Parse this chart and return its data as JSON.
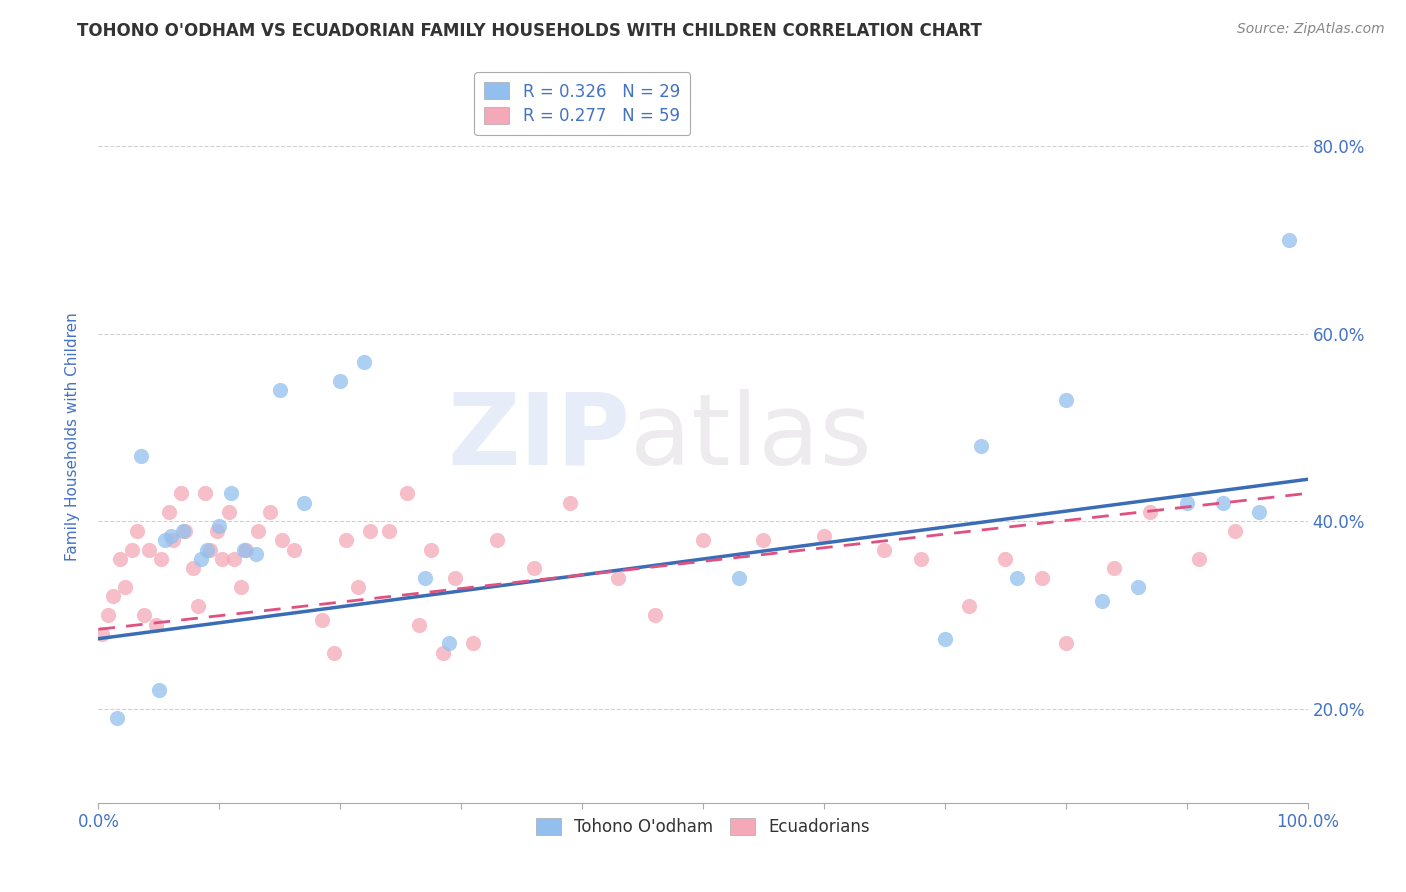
{
  "title": "TOHONO O'ODHAM VS ECUADORIAN FAMILY HOUSEHOLDS WITH CHILDREN CORRELATION CHART",
  "source": "Source: ZipAtlas.com",
  "ylabel": "Family Households with Children",
  "watermark_top": "ZIP",
  "watermark_bot": "atlas",
  "xlim": [
    0,
    100
  ],
  "ylim": [
    10,
    88
  ],
  "yticks": [
    20.0,
    40.0,
    60.0,
    80.0
  ],
  "xticks": [
    0,
    10,
    20,
    30,
    40,
    50,
    60,
    70,
    80,
    90,
    100
  ],
  "legend_r1": "R = 0.326",
  "legend_n1": "N = 29",
  "legend_r2": "R = 0.277",
  "legend_n2": "N = 59",
  "blue_color": "#92BFED",
  "pink_color": "#F4A8B8",
  "blue_line_color": "#3A6DB5",
  "pink_line_color": "#E05080",
  "text_color": "#4472C4",
  "tohono_x": [
    1.5,
    3.5,
    5.0,
    5.5,
    6.0,
    7.0,
    8.5,
    9.0,
    10.0,
    11.0,
    12.0,
    13.0,
    15.0,
    17.0,
    20.0,
    22.0,
    27.0,
    29.0,
    53.0,
    70.0,
    73.0,
    76.0,
    80.0,
    83.0,
    86.0,
    90.0,
    93.0,
    96.0,
    98.5
  ],
  "tohono_y": [
    19.0,
    47.0,
    22.0,
    38.0,
    38.5,
    39.0,
    36.0,
    37.0,
    39.5,
    43.0,
    37.0,
    36.5,
    54.0,
    42.0,
    55.0,
    57.0,
    34.0,
    27.0,
    34.0,
    27.5,
    48.0,
    34.0,
    53.0,
    31.5,
    33.0,
    42.0,
    42.0,
    41.0,
    70.0
  ],
  "ecuador_x": [
    0.3,
    0.8,
    1.2,
    1.8,
    2.2,
    2.8,
    3.2,
    3.8,
    4.2,
    4.8,
    5.2,
    5.8,
    6.2,
    6.8,
    7.2,
    7.8,
    8.2,
    8.8,
    9.2,
    9.8,
    10.2,
    10.8,
    11.2,
    11.8,
    12.2,
    13.2,
    14.2,
    15.2,
    16.2,
    18.5,
    19.5,
    20.5,
    21.5,
    22.5,
    24.0,
    25.5,
    26.5,
    27.5,
    28.5,
    29.5,
    31.0,
    33.0,
    36.0,
    39.0,
    43.0,
    46.0,
    50.0,
    55.0,
    60.0,
    65.0,
    68.0,
    72.0,
    75.0,
    78.0,
    80.0,
    84.0,
    87.0,
    91.0,
    94.0
  ],
  "ecuador_y": [
    28.0,
    30.0,
    32.0,
    36.0,
    33.0,
    37.0,
    39.0,
    30.0,
    37.0,
    29.0,
    36.0,
    41.0,
    38.0,
    43.0,
    39.0,
    35.0,
    31.0,
    43.0,
    37.0,
    39.0,
    36.0,
    41.0,
    36.0,
    33.0,
    37.0,
    39.0,
    41.0,
    38.0,
    37.0,
    29.5,
    26.0,
    38.0,
    33.0,
    39.0,
    39.0,
    43.0,
    29.0,
    37.0,
    26.0,
    34.0,
    27.0,
    38.0,
    35.0,
    42.0,
    34.0,
    30.0,
    38.0,
    38.0,
    38.5,
    37.0,
    36.0,
    31.0,
    36.0,
    34.0,
    27.0,
    35.0,
    41.0,
    36.0,
    39.0
  ],
  "blue_trendline_x": [
    0,
    100
  ],
  "blue_trendline_y": [
    27.5,
    44.5
  ],
  "pink_trendline_x": [
    0,
    100
  ],
  "pink_trendline_y": [
    28.5,
    43.0
  ]
}
